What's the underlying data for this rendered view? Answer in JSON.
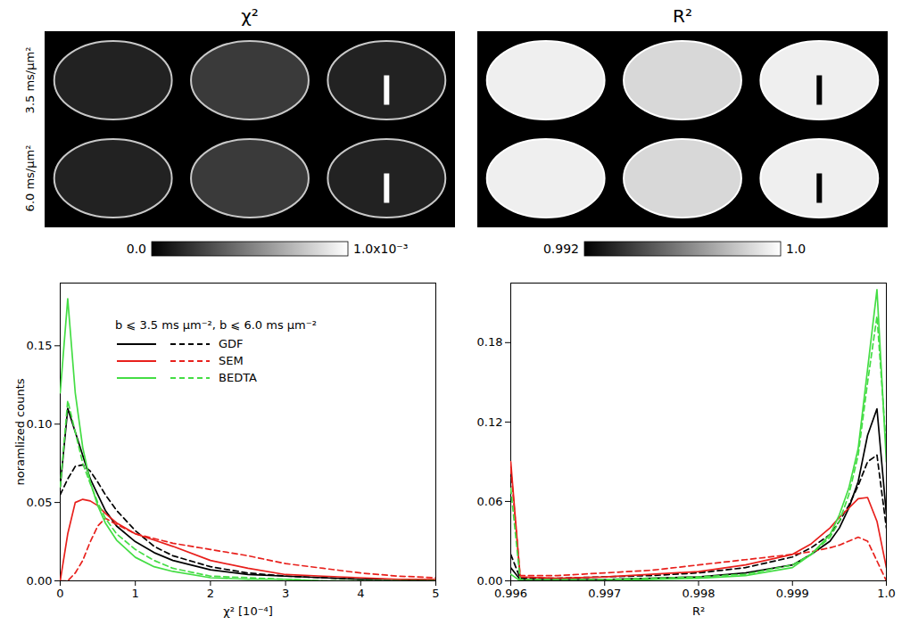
{
  "chart_data": [
    {
      "type": "heatmap",
      "title": "χ²",
      "row_labels": [
        "3.5 ms/μm²",
        "6.0 ms/μm²"
      ],
      "colorbar": {
        "range": [
          0,
          0.001
        ],
        "ticks": [
          {
            "value": 0,
            "label": "0.0"
          },
          {
            "value": 0.001,
            "label": "1.0x10⁻³"
          }
        ]
      }
    },
    {
      "type": "heatmap",
      "title": "R²",
      "colorbar": {
        "range": [
          0.992,
          1.0
        ],
        "ticks": [
          {
            "value": 0.992,
            "label": "0.992"
          },
          {
            "value": 1,
            "label": "1.0"
          }
        ]
      }
    },
    {
      "type": "line",
      "x_label": "χ² [10⁻⁴]",
      "y_label": "noramlized counts",
      "legend": "upper right",
      "legend_title": [
        "b ⩽ 3.5 ms µm⁻²,",
        "b ⩽ 6.0 ms µm⁻²"
      ],
      "xlim": [
        0,
        5
      ],
      "xticks": [
        0,
        1,
        2,
        3,
        4,
        5
      ],
      "ylim": [
        0,
        0.19
      ],
      "yticks": [
        {
          "value": 0,
          "label": "0.00"
        },
        {
          "value": 0.05,
          "label": "0.05"
        },
        {
          "value": 0.1,
          "label": "0.10"
        },
        {
          "value": 0.15,
          "label": "0.15"
        }
      ],
      "x": [
        0,
        0.1,
        0.2,
        0.3,
        0.4,
        0.5,
        0.6,
        0.75,
        1.0,
        1.25,
        1.5,
        2.0,
        2.5,
        3.0,
        3.5,
        4.0,
        4.5,
        5.0
      ],
      "series": [
        {
          "name": "GDF",
          "color": "#000000",
          "line_style": "solid",
          "values": [
            0.06,
            0.11,
            0.095,
            0.08,
            0.065,
            0.055,
            0.045,
            0.035,
            0.025,
            0.018,
            0.013,
            0.007,
            0.004,
            0.003,
            0.002,
            0.001,
            0.001,
            0.0
          ]
        },
        {
          "name": "GDF",
          "color": "#000000",
          "line_style": "dashed",
          "values": [
            0.055,
            0.065,
            0.073,
            0.074,
            0.07,
            0.063,
            0.055,
            0.045,
            0.032,
            0.022,
            0.016,
            0.009,
            0.005,
            0.003,
            0.002,
            0.001,
            0.001,
            0.0
          ]
        },
        {
          "name": "SEM",
          "color": "#e8201c",
          "line_style": "solid",
          "values": [
            0.0,
            0.03,
            0.05,
            0.052,
            0.051,
            0.048,
            0.043,
            0.037,
            0.03,
            0.026,
            0.022,
            0.013,
            0.008,
            0.004,
            0.003,
            0.002,
            0.001,
            0.001
          ]
        },
        {
          "name": "SEM",
          "color": "#e8201c",
          "line_style": "dashed",
          "values": [
            0.0,
            0.0,
            0.005,
            0.013,
            0.025,
            0.035,
            0.04,
            0.036,
            0.03,
            0.027,
            0.024,
            0.02,
            0.016,
            0.011,
            0.008,
            0.005,
            0.003,
            0.002
          ]
        },
        {
          "name": "BEDTA",
          "color": "#44dd44",
          "line_style": "solid",
          "values": [
            0.12,
            0.18,
            0.12,
            0.085,
            0.063,
            0.048,
            0.037,
            0.026,
            0.015,
            0.009,
            0.006,
            0.002,
            0.001,
            0.001,
            0.0,
            0.0,
            0.0,
            0.0
          ]
        },
        {
          "name": "BEDTA",
          "color": "#44dd44",
          "line_style": "dashed",
          "values": [
            0.06,
            0.115,
            0.095,
            0.075,
            0.062,
            0.05,
            0.04,
            0.03,
            0.02,
            0.013,
            0.008,
            0.003,
            0.002,
            0.001,
            0.0,
            0.0,
            0.0,
            0.0
          ]
        }
      ]
    },
    {
      "type": "line",
      "x_label": "R²",
      "xlim": [
        0.996,
        1.0
      ],
      "xticks": [
        0.996,
        0.997,
        0.998,
        0.999,
        {
          "value": 1,
          "label": "1.0"
        }
      ],
      "ylim": [
        0,
        0.225
      ],
      "yticks": [
        {
          "value": 0,
          "label": "0.00"
        },
        {
          "value": 0.06,
          "label": "0.06"
        },
        {
          "value": 0.12,
          "label": "0.12"
        },
        {
          "value": 0.18,
          "label": "0.18"
        }
      ],
      "x": [
        0.996,
        0.9961,
        0.9965,
        0.997,
        0.9975,
        0.998,
        0.9985,
        0.999,
        0.9992,
        0.9994,
        0.9995,
        0.9996,
        0.9997,
        0.9998,
        0.9999,
        1.0
      ],
      "series": [
        {
          "name": "GDF",
          "color": "#000000",
          "line_style": "solid",
          "values": [
            0.01,
            0.001,
            0.001,
            0.001,
            0.002,
            0.003,
            0.006,
            0.012,
            0.02,
            0.03,
            0.04,
            0.055,
            0.075,
            0.11,
            0.13,
            0.05
          ]
        },
        {
          "name": "GDF",
          "color": "#000000",
          "line_style": "dashed",
          "values": [
            0.02,
            0.002,
            0.002,
            0.003,
            0.004,
            0.006,
            0.01,
            0.018,
            0.025,
            0.035,
            0.045,
            0.057,
            0.072,
            0.09,
            0.095,
            0.04
          ]
        },
        {
          "name": "SEM",
          "color": "#e8201c",
          "line_style": "solid",
          "values": [
            0.09,
            0.003,
            0.002,
            0.003,
            0.005,
            0.007,
            0.012,
            0.02,
            0.028,
            0.04,
            0.048,
            0.055,
            0.062,
            0.063,
            0.045,
            0.01
          ]
        },
        {
          "name": "SEM",
          "color": "#e8201c",
          "line_style": "dashed",
          "values": [
            0.085,
            0.004,
            0.004,
            0.006,
            0.008,
            0.012,
            0.016,
            0.02,
            0.022,
            0.025,
            0.027,
            0.03,
            0.033,
            0.03,
            0.015,
            0.0
          ]
        },
        {
          "name": "BEDTA",
          "color": "#44dd44",
          "line_style": "solid",
          "values": [
            0.005,
            0.0,
            0.0,
            0.0,
            0.001,
            0.002,
            0.004,
            0.01,
            0.02,
            0.035,
            0.05,
            0.07,
            0.1,
            0.16,
            0.22,
            0.09
          ]
        },
        {
          "name": "BEDTA",
          "color": "#44dd44",
          "line_style": "dashed",
          "values": [
            0.07,
            0.001,
            0.001,
            0.001,
            0.002,
            0.003,
            0.005,
            0.012,
            0.02,
            0.033,
            0.045,
            0.065,
            0.095,
            0.15,
            0.2,
            0.1
          ]
        }
      ]
    }
  ]
}
